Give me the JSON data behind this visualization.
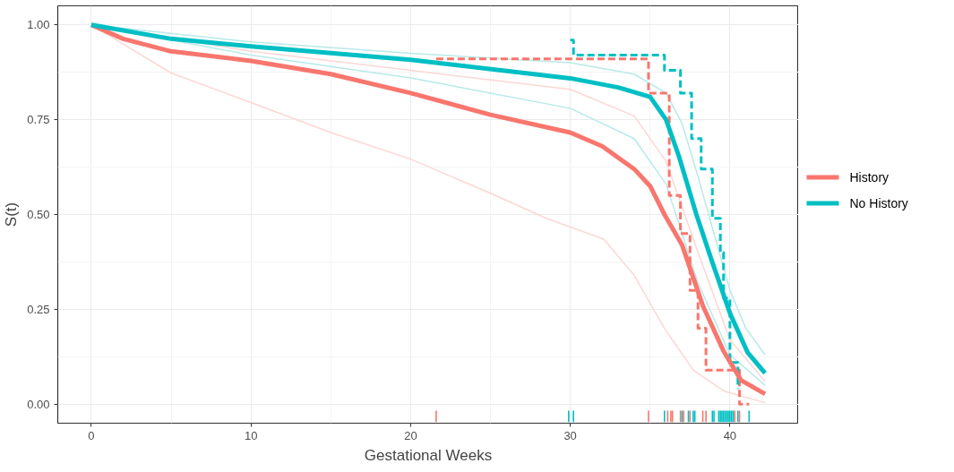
{
  "chart_data": {
    "type": "line",
    "xlabel": "Gestational Weeks",
    "ylabel": "S(t)",
    "xlim": [
      -2.1,
      44.3
    ],
    "ylim": [
      -0.05,
      1.05
    ],
    "xticks": [
      0,
      10,
      20,
      30,
      40
    ],
    "yticks": [
      {
        "value": 0,
        "label": "0.00"
      },
      {
        "value": 0.25,
        "label": "0.25"
      },
      {
        "value": 0.5,
        "label": "0.50"
      },
      {
        "value": 0.75,
        "label": "0.75"
      },
      {
        "value": 1,
        "label": "1.00"
      }
    ],
    "grid": true,
    "legend": "right",
    "line_style": "solid",
    "marker": "none",
    "series": [
      {
        "color": "#fbd7d5",
        "x": [
          0,
          5,
          10,
          15,
          20,
          25,
          28.5,
          32.1,
          34,
          35.9,
          37.7,
          39.6,
          42.2
        ],
        "values": [
          1.0,
          0.873,
          0.795,
          0.716,
          0.646,
          0.556,
          0.49,
          0.435,
          0.34,
          0.2,
          0.09,
          0.035,
          0.004
        ]
      },
      {
        "color": "#fbd7d5",
        "x": [
          0,
          10,
          20,
          30,
          34,
          36,
          38,
          40,
          42.2
        ],
        "values": [
          1.0,
          0.93,
          0.88,
          0.83,
          0.76,
          0.64,
          0.4,
          0.17,
          0.06
        ]
      },
      {
        "color": "#b8e9e9",
        "x": [
          0,
          10,
          20,
          30,
          34,
          36,
          38,
          40,
          42.2
        ],
        "values": [
          1.0,
          0.92,
          0.86,
          0.78,
          0.7,
          0.58,
          0.32,
          0.13,
          0.05
        ]
      },
      {
        "color": "#b8e9e9",
        "x": [
          0,
          10,
          20,
          30,
          34,
          36,
          37,
          38,
          39,
          40,
          41,
          42.2
        ],
        "values": [
          1.0,
          0.955,
          0.925,
          0.9,
          0.87,
          0.82,
          0.74,
          0.6,
          0.45,
          0.3,
          0.2,
          0.13
        ]
      },
      {
        "type": "step",
        "line_style": "dashed",
        "color": "#f8766d",
        "x": [
          21.6,
          34.9,
          36.2,
          36.9,
          37.5,
          38.0,
          38.5,
          40.6,
          41.2
        ],
        "values": [
          0.91,
          0.82,
          0.55,
          0.45,
          0.3,
          0.2,
          0.09,
          0.0,
          0.0
        ]
      },
      {
        "type": "step",
        "line_style": "dashed",
        "color": "#00bfc4",
        "x": [
          30.0,
          30.2,
          35.9,
          36.9,
          37.6,
          38.2,
          38.9,
          39.4,
          39.6,
          40.0,
          40.5
        ],
        "values": [
          0.96,
          0.92,
          0.88,
          0.82,
          0.7,
          0.62,
          0.49,
          0.4,
          0.28,
          0.11,
          0.04
        ]
      },
      {
        "name": "History",
        "color": "#f8766d",
        "x": [
          0,
          2,
          5,
          10,
          15,
          20,
          25,
          30,
          32,
          34,
          35,
          35.9,
          37,
          38.3,
          39.6,
          40.7,
          42.2
        ],
        "values": [
          1.0,
          0.963,
          0.93,
          0.905,
          0.87,
          0.82,
          0.763,
          0.716,
          0.68,
          0.62,
          0.575,
          0.5,
          0.42,
          0.26,
          0.14,
          0.063,
          0.027
        ]
      },
      {
        "name": "No History",
        "color": "#00bfc4",
        "x": [
          0,
          5,
          10,
          20,
          30,
          33,
          35,
          36,
          36.8,
          37.9,
          38.85,
          40,
          41.1,
          42.2
        ],
        "values": [
          1.0,
          0.963,
          0.943,
          0.908,
          0.859,
          0.835,
          0.81,
          0.75,
          0.654,
          0.5,
          0.38,
          0.24,
          0.137,
          0.082
        ]
      },
      {
        "type": "bar",
        "color": "#f8766d",
        "x": [
          21.6,
          34.9,
          36.1,
          36.3,
          36.4,
          36.9,
          37.1,
          37.5,
          38.3,
          38.5,
          40.3,
          40.6
        ],
        "base": [
          -0.047,
          -0.047,
          -0.047,
          -0.047,
          -0.047,
          -0.047,
          -0.047,
          -0.047,
          -0.047,
          -0.047,
          -0.047,
          -0.047
        ],
        "values": [
          0.03,
          0.03,
          0.03,
          0.03,
          0.03,
          0.03,
          0.03,
          0.03,
          0.03,
          0.03,
          0.03,
          0.03
        ]
      },
      {
        "type": "bar",
        "color": "#00bfc4",
        "x": [
          29.9,
          30.2,
          35.9,
          37.0,
          37.4,
          37.7,
          37.8,
          38.9,
          39.0,
          39.3,
          39.4,
          39.5,
          39.6,
          39.7,
          39.8,
          39.9,
          40.0,
          40.1,
          40.2,
          40.5,
          41.2
        ],
        "base": [
          -0.047,
          -0.047,
          -0.047,
          -0.047,
          -0.047,
          -0.047,
          -0.047,
          -0.047,
          -0.047,
          -0.047,
          -0.047,
          -0.047,
          -0.047,
          -0.047,
          -0.047,
          -0.047,
          -0.047,
          -0.047,
          -0.047,
          -0.047,
          -0.047
        ],
        "values": [
          0.03,
          0.03,
          0.03,
          0.03,
          0.03,
          0.03,
          0.03,
          0.03,
          0.03,
          0.03,
          0.03,
          0.03,
          0.03,
          0.03,
          0.03,
          0.03,
          0.03,
          0.03,
          0.03,
          0.03,
          0.03
        ]
      }
    ]
  }
}
